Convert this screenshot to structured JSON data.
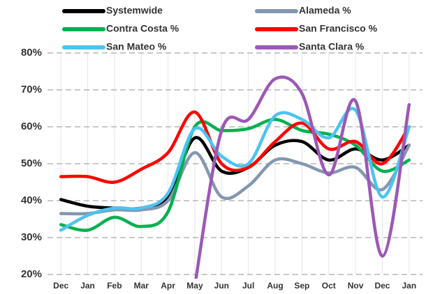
{
  "chart_data": {
    "type": "line",
    "categories": [
      "Dec",
      "Jan",
      "Feb",
      "Mar",
      "Apr",
      "May",
      "Jun",
      "Jul",
      "Aug",
      "Sep",
      "Oct",
      "Nov",
      "Dec",
      "Jan"
    ],
    "series": [
      {
        "name": "Systemwide",
        "color": "#000000",
        "values": [
          40.3,
          38.5,
          38,
          38,
          41,
          57,
          48,
          49,
          55,
          56,
          51,
          54,
          51,
          55
        ]
      },
      {
        "name": "Alameda %",
        "color": "#8497b0",
        "values": [
          36.5,
          36.5,
          37.5,
          37.5,
          40,
          53,
          41,
          44,
          51,
          50,
          47.5,
          49,
          43,
          55
        ]
      },
      {
        "name": "Contra Costa %",
        "color": "#00b050",
        "values": [
          33.5,
          32,
          35.5,
          33,
          37,
          60,
          59,
          59.5,
          62,
          59,
          58,
          55,
          48,
          51
        ]
      },
      {
        "name": "San Francisco %",
        "color": "#ff0000",
        "values": [
          46.5,
          46.5,
          45,
          48.5,
          53,
          64,
          50,
          49,
          56,
          61,
          54,
          56,
          50,
          60
        ]
      },
      {
        "name": "San Mateo %",
        "color": "#4dc3f0",
        "values": [
          32,
          36,
          38,
          38,
          42,
          59.5,
          52,
          50,
          63,
          62,
          57,
          64.5,
          41,
          60
        ]
      },
      {
        "name": "Santa Clara %",
        "color": "#9b59b6",
        "values": [
          null,
          null,
          null,
          null,
          null,
          17,
          59,
          62,
          73,
          69,
          47,
          67,
          25,
          66
        ]
      }
    ],
    "ylim": [
      20,
      80
    ],
    "yticks": [
      {
        "value": 20,
        "label": "20%"
      },
      {
        "value": 30,
        "label": "30%"
      },
      {
        "value": 40,
        "label": "40%"
      },
      {
        "value": 50,
        "label": "50%"
      },
      {
        "value": 60,
        "label": "60%"
      },
      {
        "value": 70,
        "label": "70%"
      },
      {
        "value": 80,
        "label": "80%"
      }
    ],
    "grid": true
  }
}
